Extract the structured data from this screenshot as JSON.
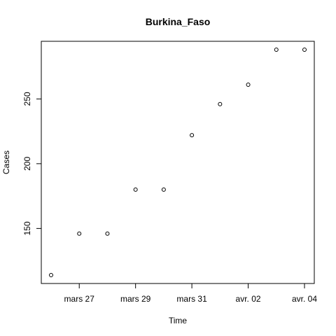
{
  "chart_data": {
    "type": "scatter",
    "title": "Burkina_Faso",
    "xlabel": "Time",
    "ylabel": "Cases",
    "x": [
      "2020-03-26",
      "2020-03-27",
      "2020-03-28",
      "2020-03-29",
      "2020-03-30",
      "2020-03-31",
      "2020-04-01",
      "2020-04-02",
      "2020-04-03",
      "2020-04-04"
    ],
    "values": [
      114,
      146,
      146,
      180,
      180,
      222,
      246,
      261,
      288,
      288
    ],
    "xlim": [
      "2020-03-26",
      "2020-04-04"
    ],
    "ylim": [
      114,
      288
    ],
    "x_ticks": [
      {
        "date": "2020-03-27",
        "label": "mars 27"
      },
      {
        "date": "2020-03-29",
        "label": "mars 29"
      },
      {
        "date": "2020-03-31",
        "label": "mars 31"
      },
      {
        "date": "2020-04-02",
        "label": "avr. 02"
      },
      {
        "date": "2020-04-04",
        "label": "avr. 04"
      }
    ],
    "y_ticks": [
      150,
      200,
      250
    ],
    "grid": false,
    "legend": "none",
    "marker": "open-circle",
    "color": "#000000"
  }
}
